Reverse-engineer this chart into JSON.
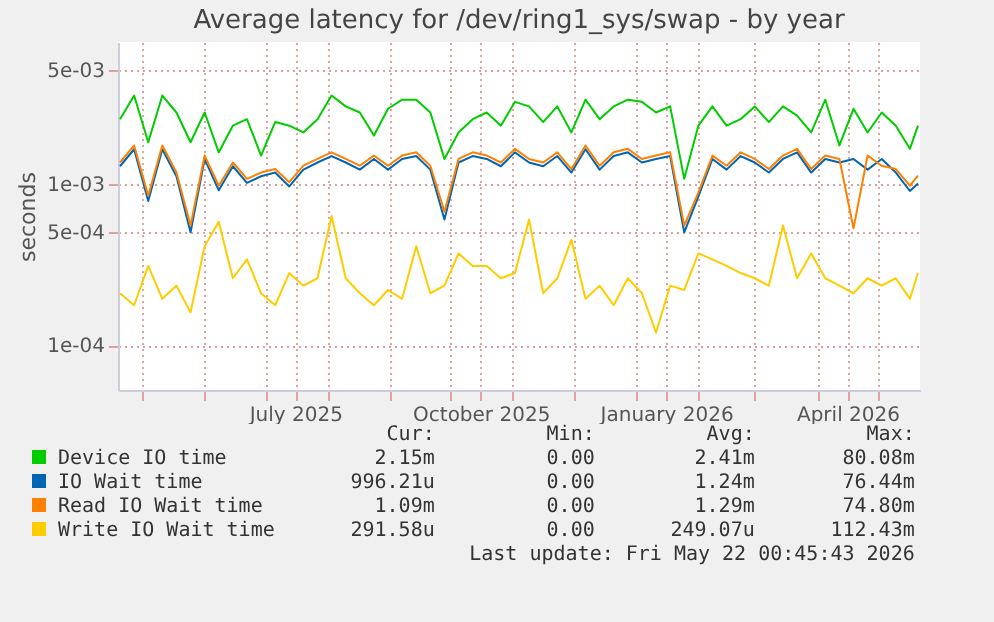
{
  "chart_data": {
    "type": "line",
    "title": "Average latency for /dev/ring1_sys/swap - by year",
    "ylabel": "seconds",
    "log": "y",
    "grid": true,
    "legend": "bottom",
    "x": [
      "2025-04-20",
      "2025-04-27",
      "2025-05-04",
      "2025-05-11",
      "2025-05-18",
      "2025-05-25",
      "2025-06-01",
      "2025-06-08",
      "2025-06-15",
      "2025-06-22",
      "2025-06-29",
      "2025-07-06",
      "2025-07-13",
      "2025-07-20",
      "2025-07-27",
      "2025-08-03",
      "2025-08-10",
      "2025-08-17",
      "2025-08-24",
      "2025-08-31",
      "2025-09-07",
      "2025-09-14",
      "2025-09-21",
      "2025-09-28",
      "2025-10-05",
      "2025-10-12",
      "2025-10-19",
      "2025-10-26",
      "2025-11-02",
      "2025-11-09",
      "2025-11-16",
      "2025-11-23",
      "2025-11-30",
      "2025-12-07",
      "2025-12-14",
      "2025-12-21",
      "2025-12-28",
      "2026-01-04",
      "2026-01-11",
      "2026-01-18",
      "2026-01-25",
      "2026-02-01",
      "2026-02-08",
      "2026-02-15",
      "2026-02-22",
      "2026-03-01",
      "2026-03-08",
      "2026-03-15",
      "2026-03-22",
      "2026-03-29",
      "2026-04-05",
      "2026-04-12",
      "2026-04-19",
      "2026-04-26",
      "2026-05-03",
      "2026-05-10",
      "2026-05-17",
      "2026-05-21"
    ],
    "xlim": [
      "2025-04-19",
      "2026-05-22"
    ],
    "xticks": [
      {
        "value": "2025-05-01",
        "label": null
      },
      {
        "value": "2025-06-01",
        "label": null
      },
      {
        "value": "2025-07-01",
        "label": null
      },
      {
        "value": "2025-07-16",
        "label": "July 2025"
      },
      {
        "value": "2025-08-01",
        "label": null
      },
      {
        "value": "2025-09-01",
        "label": null
      },
      {
        "value": "2025-10-01",
        "label": null
      },
      {
        "value": "2025-10-16",
        "label": "October 2025"
      },
      {
        "value": "2025-11-01",
        "label": null
      },
      {
        "value": "2025-12-01",
        "label": null
      },
      {
        "value": "2026-01-01",
        "label": null
      },
      {
        "value": "2026-01-16",
        "label": "January 2026"
      },
      {
        "value": "2026-02-01",
        "label": null
      },
      {
        "value": "2026-03-01",
        "label": null
      },
      {
        "value": "2026-04-01",
        "label": null
      },
      {
        "value": "2026-04-16",
        "label": "April 2026"
      },
      {
        "value": "2026-05-01",
        "label": null
      }
    ],
    "ylim": [
      5.3e-05,
      0.0075
    ],
    "yticks": [
      {
        "value": 0.005,
        "label": "5e-03"
      },
      {
        "value": 0.001,
        "label": "1e-03"
      },
      {
        "value": 0.0005,
        "label": "5e-04"
      },
      {
        "value": 0.0001,
        "label": "1e-04"
      }
    ],
    "series": [
      {
        "name": "Device IO time",
        "color": "#00cc00",
        "values": [
          0.0025,
          0.0035,
          0.0018,
          0.0035,
          0.00275,
          0.0018,
          0.00275,
          0.00156,
          0.00228,
          0.0025,
          0.00149,
          0.0024,
          0.00228,
          0.00207,
          0.0025,
          0.0035,
          0.003,
          0.00275,
          0.00198,
          0.0029,
          0.0033,
          0.0033,
          0.00275,
          0.00142,
          0.00207,
          0.0025,
          0.00275,
          0.00228,
          0.0032,
          0.003,
          0.0024,
          0.003,
          0.00207,
          0.0033,
          0.0025,
          0.003,
          0.0033,
          0.0032,
          0.00275,
          0.003,
          0.00107,
          0.00228,
          0.003,
          0.00228,
          0.0025,
          0.003,
          0.0024,
          0.003,
          0.00263,
          0.00207,
          0.0033,
          0.00172,
          0.0029,
          0.00207,
          0.00275,
          0.00228,
          0.00164,
          0.00228
        ]
      },
      {
        "name": "IO Wait time",
        "color": "#0066b3",
        "values": [
          0.00128,
          0.00163,
          0.00078,
          0.00163,
          0.00111,
          0.0005,
          0.00142,
          0.00091,
          0.00128,
          0.00101,
          0.00111,
          0.00117,
          0.00096,
          0.00122,
          0.00135,
          0.00148,
          0.00135,
          0.00122,
          0.00142,
          0.00122,
          0.00142,
          0.00148,
          0.00122,
          0.0006,
          0.00135,
          0.00148,
          0.00142,
          0.00128,
          0.00156,
          0.00135,
          0.00128,
          0.00148,
          0.00117,
          0.00163,
          0.00122,
          0.00148,
          0.00156,
          0.00135,
          0.00142,
          0.00148,
          0.0005,
          0.00083,
          0.00142,
          0.00122,
          0.00148,
          0.00135,
          0.00117,
          0.00142,
          0.00156,
          0.00117,
          0.00142,
          0.00135,
          0.00142,
          0.00122,
          0.00142,
          0.00117,
          0.0009,
          0.001
        ]
      },
      {
        "name": "Read IO Wait time",
        "color": "#ff8000",
        "values": [
          0.00135,
          0.00172,
          0.00084,
          0.00172,
          0.00117,
          0.00055,
          0.00149,
          0.00097,
          0.00135,
          0.00107,
          0.00117,
          0.00123,
          0.00102,
          0.00129,
          0.00142,
          0.00156,
          0.00142,
          0.00129,
          0.00149,
          0.00129,
          0.00149,
          0.00156,
          0.00129,
          0.00067,
          0.00142,
          0.00156,
          0.00149,
          0.00135,
          0.00164,
          0.00142,
          0.00135,
          0.00156,
          0.00123,
          0.00172,
          0.00129,
          0.00156,
          0.00164,
          0.00142,
          0.00149,
          0.00156,
          0.00055,
          0.00088,
          0.00149,
          0.00129,
          0.00156,
          0.00142,
          0.00123,
          0.00149,
          0.00164,
          0.00123,
          0.00149,
          0.00142,
          0.00053,
          0.00149,
          0.00129,
          0.00123,
          0.00097,
          0.00112
        ]
      },
      {
        "name": "Write IO Wait time",
        "color": "#ffcc00",
        "values": [
          0.00021,
          0.000177,
          0.00031,
          0.000194,
          0.000234,
          0.00016,
          0.00041,
          0.00058,
          0.00026,
          0.00034,
          0.00021,
          0.000177,
          0.00028,
          0.000234,
          0.00026,
          0.00063,
          0.00026,
          0.00021,
          0.000177,
          0.00022,
          0.000194,
          0.00041,
          0.00021,
          0.000234,
          0.00037,
          0.00031,
          0.00031,
          0.00026,
          0.00028,
          0.0006,
          0.00021,
          0.00026,
          0.00045,
          0.000194,
          0.000234,
          0.000177,
          0.00026,
          0.00021,
          0.00012,
          0.000234,
          0.00022,
          0.00037,
          0.00034,
          0.00031,
          0.00028,
          0.00026,
          0.000234,
          0.00055,
          0.00026,
          0.00037,
          0.00026,
          0.000234,
          0.00021,
          0.00026,
          0.000234,
          0.00026,
          0.000194,
          0.00028
        ]
      }
    ],
    "annotations": [
      "Cur:",
      "Min:",
      "Avg:",
      "Max:",
      "2.15m",
      "0.00",
      "2.41m",
      "80.08m",
      "996.21u",
      "0.00",
      "1.24m",
      "76.44m",
      "1.09m",
      "0.00",
      "1.29m",
      "74.80m",
      "291.58u",
      "0.00",
      "249.07u",
      "112.43m",
      "Last update: Fri May 22 00:45:43 2026"
    ]
  }
}
